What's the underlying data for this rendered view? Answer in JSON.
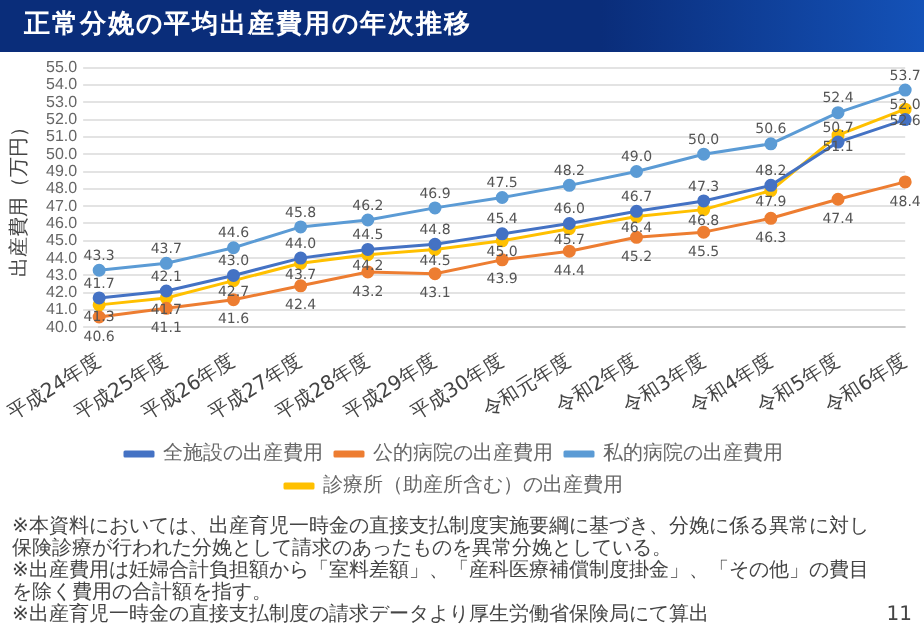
{
  "chart_data": {
    "type": "line",
    "title": "正常分娩の平均出産費用の年次推移",
    "ylabel": "出産費用（万円）",
    "categories": [
      "平成24年度",
      "平成25年度",
      "平成26年度",
      "平成27年度",
      "平成28年度",
      "平成29年度",
      "平成30年度",
      "令和元年度",
      "令和2年度",
      "令和3年度",
      "令和4年度",
      "令和5年度",
      "令和6年度"
    ],
    "series": [
      {
        "name": "全施設の出産費用",
        "color": "#4472c4",
        "values": [
          41.7,
          42.1,
          43.0,
          44.0,
          44.5,
          44.8,
          45.4,
          46.0,
          46.7,
          47.3,
          48.2,
          50.7,
          52.0
        ],
        "value_labels": [
          "41.7",
          "42.1",
          "43.0",
          "44.0",
          "44.5",
          "44.8",
          "45.4",
          "46.0",
          "46.7",
          "47.3",
          "48.2",
          "50.7",
          "52.0"
        ]
      },
      {
        "name": "公的病院の出産費用",
        "color": "#ed7d31",
        "values": [
          40.6,
          41.1,
          41.6,
          42.4,
          43.2,
          43.1,
          43.9,
          44.4,
          45.2,
          45.5,
          46.3,
          47.4,
          48.4
        ],
        "value_labels": [
          "40.6",
          "41.1",
          "41.6",
          "42.4",
          "43.2",
          "43.1",
          "43.9",
          "44.4",
          "45.2",
          "45.5",
          "46.3",
          "47.4",
          "48.4"
        ]
      },
      {
        "name": "私的病院の出産費用",
        "color": "#5b9bd5",
        "values": [
          43.3,
          43.7,
          44.6,
          45.8,
          46.2,
          46.9,
          47.5,
          48.2,
          49.0,
          50.0,
          50.6,
          52.4,
          53.7
        ],
        "value_labels": [
          "43.3",
          "43.7",
          "44.6",
          "45.8",
          "46.2",
          "46.9",
          "47.5",
          "48.2",
          "49.0",
          "50.0",
          "50.6",
          "52.4",
          "53.7"
        ]
      },
      {
        "name": "診療所（助産所含む）の出産費用",
        "color": "#ffc000",
        "values": [
          41.3,
          41.7,
          42.7,
          43.7,
          44.2,
          44.5,
          45.0,
          45.7,
          46.4,
          46.8,
          47.9,
          51.1,
          52.6
        ],
        "value_labels": [
          "41.3",
          "41.7",
          "42.7",
          "43.7",
          "44.2",
          "44.5",
          "45.0",
          "45.7",
          "46.4",
          "46.8",
          "47.9",
          "51.1",
          "52.6"
        ]
      }
    ],
    "ylim": [
      40,
      55
    ],
    "yticks": [
      {
        "value": 40,
        "label": "40.0"
      },
      {
        "value": 41,
        "label": "41.0"
      },
      {
        "value": 42,
        "label": "42.0"
      },
      {
        "value": 43,
        "label": "43.0"
      },
      {
        "value": 44,
        "label": "44.0"
      },
      {
        "value": 45,
        "label": "45.0"
      },
      {
        "value": 46,
        "label": "46.0"
      },
      {
        "value": 47,
        "label": "47.0"
      },
      {
        "value": 48,
        "label": "48.0"
      },
      {
        "value": 49,
        "label": "49.0"
      },
      {
        "value": 50,
        "label": "50.0"
      },
      {
        "value": 51,
        "label": "51.0"
      },
      {
        "value": 52,
        "label": "52.0"
      },
      {
        "value": 53,
        "label": "53.0"
      },
      {
        "value": 54,
        "label": "54.0"
      },
      {
        "value": 55,
        "label": "55.0"
      }
    ],
    "grid": "y",
    "legend": "bottom",
    "marker": "circle",
    "line_style": "solid",
    "annotations": [
      "※本資料においては、出産育児一時金の直接支払制度実施要綱に基づき、分娩に係る異常に対し保険診療が行われた分娩として請求のあったものを異常分娩としている。",
      "※出産費用は妊婦合計負担額から「室料差額」、「産科医療補償制度掛金」、「その他」の費目を除く費用の合計額を指す。",
      "※出産育児一時金の直接支払制度の請求データより厚生労働省保険局にて算出",
      "11"
    ]
  }
}
